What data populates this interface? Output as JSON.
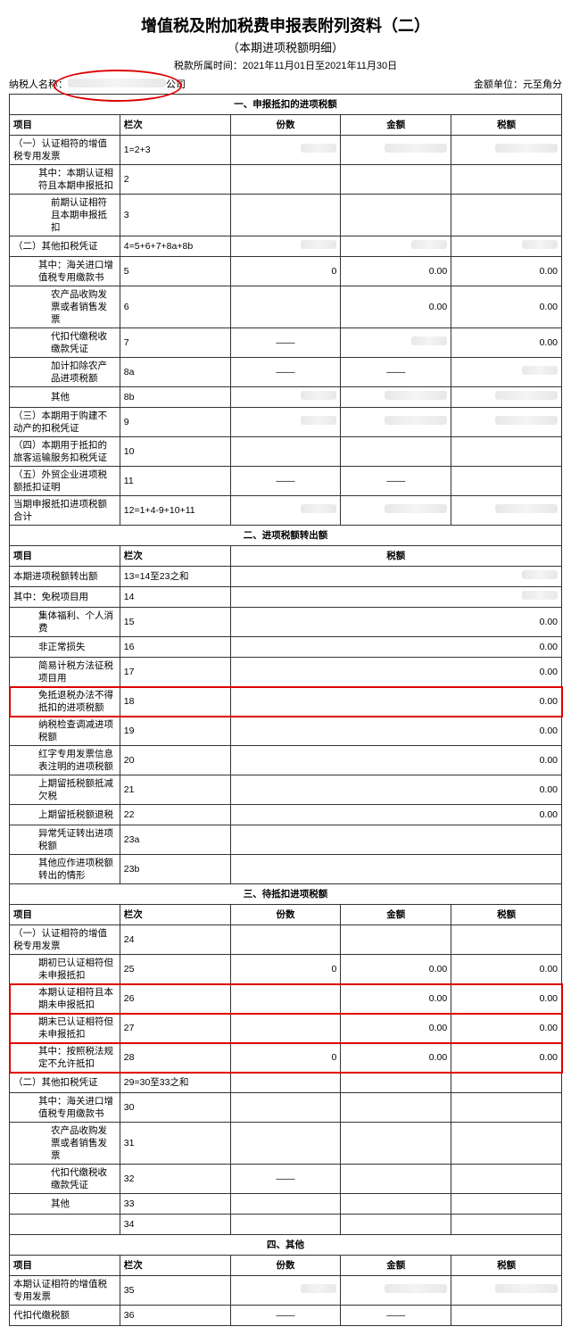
{
  "title": "增值税及附加税费申报表附列资料（二）",
  "subtitle": "（本期进项税额明细）",
  "period_label": "税款所属时间：",
  "period_value": "2021年11月01日至2021年11月30日",
  "taxpayer_label": "纳税人名称：",
  "taxpayer_suffix": "公司",
  "amount_unit": "金额单位：元至角分",
  "sec1": {
    "title": "一、申报抵扣的进项税额",
    "cols": [
      "项目",
      "栏次",
      "份数",
      "金额",
      "税额"
    ]
  },
  "sec2": {
    "title": "二、进项税额转出额",
    "cols": [
      "项目",
      "栏次",
      "税额"
    ]
  },
  "sec3": {
    "title": "三、待抵扣进项税额",
    "cols": [
      "项目",
      "栏次",
      "份数",
      "金额",
      "税额"
    ]
  },
  "sec4": {
    "title": "四、其他",
    "cols": [
      "项目",
      "栏次",
      "份数",
      "金额",
      "税额"
    ]
  },
  "r": {
    "r1": {
      "t": "（一）认证相符的增值税专用发票",
      "n": "1=2+3"
    },
    "r2": {
      "t": "其中：本期认证相符且本期申报抵扣",
      "n": "2"
    },
    "r3": {
      "t": "前期认证相符且本期申报抵扣",
      "n": "3"
    },
    "r4": {
      "t": "（二）其他扣税凭证",
      "n": "4=5+6+7+8a+8b"
    },
    "r5": {
      "t": "其中：海关进口增值税专用缴款书",
      "n": "5",
      "v3": "0",
      "v4": "0.00",
      "v5": "0.00"
    },
    "r6": {
      "t": "农产品收购发票或者销售发票",
      "n": "6",
      "v4": "0.00",
      "v5": "0.00"
    },
    "r7": {
      "t": "代扣代缴税收缴款凭证",
      "n": "7",
      "v5": "0.00"
    },
    "r8a": {
      "t": "加计扣除农产品进项税额",
      "n": "8a"
    },
    "r8b": {
      "t": "其他",
      "n": "8b"
    },
    "r9": {
      "t": "（三）本期用于购建不动产的扣税凭证",
      "n": "9"
    },
    "r10": {
      "t": "（四）本期用于抵扣的旅客运输服务扣税凭证",
      "n": "10"
    },
    "r11": {
      "t": "（五）外贸企业进项税额抵扣证明",
      "n": "11"
    },
    "r12": {
      "t": "当期申报抵扣进项税额合计",
      "n": "12=1+4-9+10+11"
    },
    "r13": {
      "t": "本期进项税额转出额",
      "n": "13=14至23之和"
    },
    "r14": {
      "t": "其中：免税项目用",
      "n": "14"
    },
    "r15": {
      "t": "集体福利、个人消费",
      "n": "15",
      "v": "0.00"
    },
    "r16": {
      "t": "非正常损失",
      "n": "16",
      "v": "0.00"
    },
    "r17": {
      "t": "简易计税方法征税项目用",
      "n": "17",
      "v": "0.00"
    },
    "r18": {
      "t": "免抵退税办法不得抵扣的进项税额",
      "n": "18",
      "v": "0.00"
    },
    "r19": {
      "t": "纳税检查调减进项税额",
      "n": "19",
      "v": "0.00"
    },
    "r20": {
      "t": "红字专用发票信息表注明的进项税额",
      "n": "20",
      "v": "0.00"
    },
    "r21": {
      "t": "上期留抵税额抵减欠税",
      "n": "21",
      "v": "0.00"
    },
    "r22": {
      "t": "上期留抵税额退税",
      "n": "22",
      "v": "0.00"
    },
    "r23a": {
      "t": "异常凭证转出进项税额",
      "n": "23a"
    },
    "r23b": {
      "t": "其他应作进项税额转出的情形",
      "n": "23b"
    },
    "r24": {
      "t": "（一）认证相符的增值税专用发票",
      "n": "24"
    },
    "r25": {
      "t": "期初已认证相符但未申报抵扣",
      "n": "25",
      "v3": "0",
      "v4": "0.00",
      "v5": "0.00"
    },
    "r26": {
      "t": "本期认证相符且本期未申报抵扣",
      "n": "26",
      "v4": "0.00",
      "v5": "0.00"
    },
    "r27": {
      "t": "期末已认证相符但未申报抵扣",
      "n": "27",
      "v4": "0.00",
      "v5": "0.00"
    },
    "r28": {
      "t": "其中：按照税法规定不允许抵扣",
      "n": "28",
      "v3": "0",
      "v4": "0.00",
      "v5": "0.00"
    },
    "r29": {
      "t": "（二）其他扣税凭证",
      "n": "29=30至33之和"
    },
    "r30": {
      "t": "其中：海关进口增值税专用缴款书",
      "n": "30"
    },
    "r31": {
      "t": "农产品收购发票或者销售发票",
      "n": "31"
    },
    "r32": {
      "t": "代扣代缴税收缴款凭证",
      "n": "32"
    },
    "r33": {
      "t": "其他",
      "n": "33"
    },
    "r34": {
      "t": "",
      "n": "34"
    },
    "r35": {
      "t": "本期认证相符的增值税专用发票",
      "n": "35"
    },
    "r36": {
      "t": "代扣代缴税额",
      "n": "36"
    }
  }
}
